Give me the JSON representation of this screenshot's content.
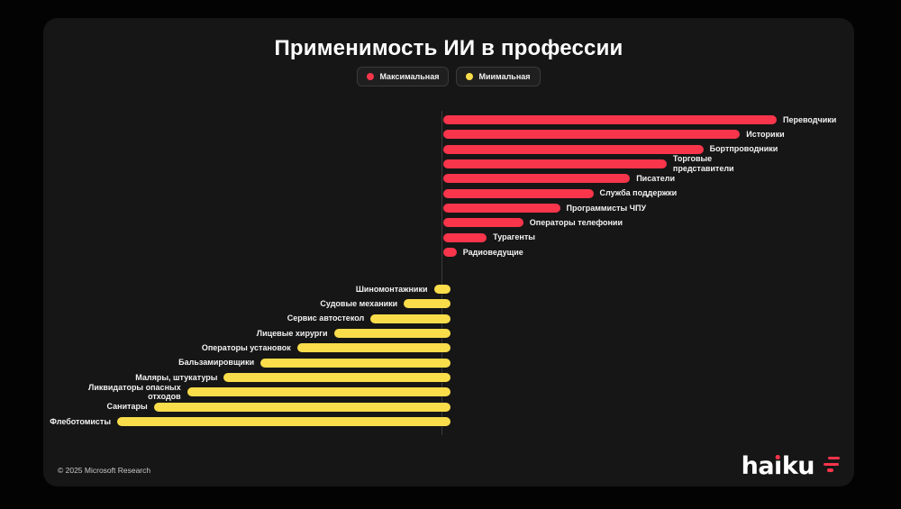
{
  "title": "Применимость ИИ в профессии",
  "colors": {
    "accent_red": "#F8354B",
    "accent_yellow": "#FADD4B",
    "card_background": "#161616",
    "page_background": "#030303",
    "label_text": "#F2F2F2"
  },
  "legend": {
    "items": [
      {
        "label": "Максимальная",
        "color": "#F8354B"
      },
      {
        "label": "Миимальная",
        "color": "#FADD4B"
      }
    ]
  },
  "chart_data": {
    "type": "bar",
    "orientation": "horizontal-diverging",
    "title": "Применимость ИИ в профессии",
    "legend_position": "top-center",
    "value_axis_visible": false,
    "value_scale": "relative length 0-100 (no numeric axis shown)",
    "series": [
      {
        "name": "Максимальная",
        "color": "#F8354B",
        "direction": "right",
        "points": [
          {
            "label": "Переводчики",
            "value": 100
          },
          {
            "label": "Историки",
            "value": 89
          },
          {
            "label": "Бортпроводники",
            "value": 78
          },
          {
            "label": "Торговые\nпредставители",
            "value": 67
          },
          {
            "label": "Писатели",
            "value": 56
          },
          {
            "label": "Служба поддержки",
            "value": 45
          },
          {
            "label": "Программисты ЧПУ",
            "value": 35
          },
          {
            "label": "Операторы телефонии",
            "value": 24
          },
          {
            "label": "Турагенты",
            "value": 13
          },
          {
            "label": "Радиоведущие",
            "value": 4
          }
        ]
      },
      {
        "name": "Миимальная",
        "color": "#FADD4B",
        "direction": "left",
        "points": [
          {
            "label": "Шиномонтажники",
            "value": 5
          },
          {
            "label": "Судовые механики",
            "value": 14
          },
          {
            "label": "Сервис автостекол",
            "value": 24
          },
          {
            "label": "Лицевые хирурги",
            "value": 35
          },
          {
            "label": "Операторы установок",
            "value": 46
          },
          {
            "label": "Бальзамировщики",
            "value": 57
          },
          {
            "label": "Маляры, штукатуры",
            "value": 68
          },
          {
            "label": "Ликвидаторы опасных\nотходов",
            "value": 79
          },
          {
            "label": "Санитары",
            "value": 89
          },
          {
            "label": "Флеботомисты",
            "value": 100
          }
        ]
      }
    ]
  },
  "footer": {
    "copyright": "© 2025 Microsoft Research"
  },
  "brand": {
    "name": "haiku"
  }
}
